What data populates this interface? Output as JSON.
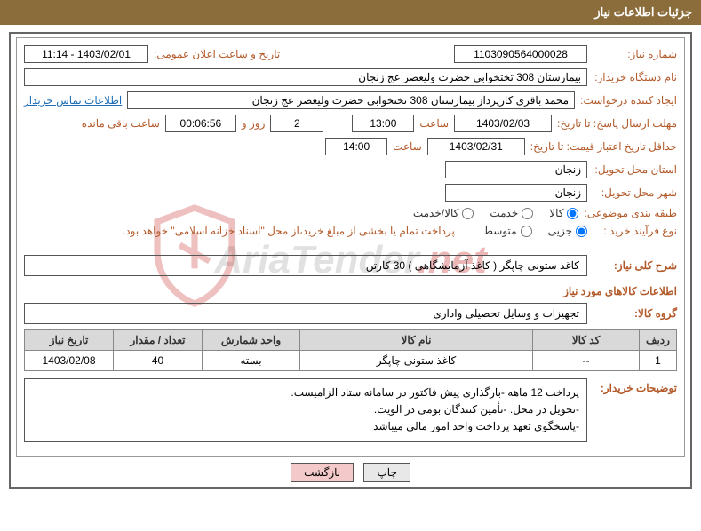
{
  "header": {
    "title": "جزئیات اطلاعات نیاز"
  },
  "fields": {
    "need_no_label": "شماره نیاز:",
    "need_no": "1103090564000028",
    "announce_label": "تاریخ و ساعت اعلان عمومی:",
    "announce": "1403/02/01 - 11:14",
    "buyer_org_label": "نام دستگاه خریدار:",
    "buyer_org": "بیمارستان 308 تختخوابی حضرت ولیعصر عج  زنجان",
    "requester_label": "ایجاد کننده درخواست:",
    "requester": "محمد باقری کارپرداز بیمارستان 308 تختخوابی حضرت ولیعصر عج  زنجان",
    "contact_link": "اطلاعات تماس خریدار",
    "resp_deadline_label": "مهلت ارسال پاسخ: تا تاریخ:",
    "resp_date": "1403/02/03",
    "time_label": "ساعت",
    "resp_time": "13:00",
    "days_val": "2",
    "days_and": "روز و",
    "countdown": "00:06:56",
    "remaining_label": "ساعت باقی مانده",
    "validity_label": "حداقل تاریخ اعتبار قیمت: تا تاریخ:",
    "validity_date": "1403/02/31",
    "validity_time": "14:00",
    "province_label": "استان محل تحویل:",
    "province": "زنجان",
    "city_label": "شهر محل تحویل:",
    "city": "زنجان",
    "subject_cat_label": "طبقه بندی موضوعی:",
    "r_goods": "کالا",
    "r_service": "خدمت",
    "r_both": "کالا/خدمت",
    "process_label": "نوع فرآیند خرید :",
    "r_partial": "جزیی",
    "r_medium": "متوسط",
    "payment_note": "پرداخت تمام یا بخشی از مبلغ خرید،از محل \"اسناد خزانه اسلامی\" خواهد بود.",
    "overview_label": "شرح کلی نیاز:",
    "overview": "کاغذ ستونی چاپگر ( کاغذ آزمایشگاهی ) 30 کارتن",
    "goods_heading": "اطلاعات کالاهای مورد نیاز",
    "group_label": "گروه کالا:",
    "group": "تجهیزات و وسایل تحصیلی واداری",
    "buyer_notes_label": "توضیحات خریدار:",
    "buyer_notes_1": "پرداخت 12 ماهه -بارگذاری پیش فاکتور در سامانه ستاد الزامیست.",
    "buyer_notes_2": "-تحویل در محل. -تأمین کنندگان بومی در الویت.",
    "buyer_notes_3": "-پاسخگوی تعهد پرداخت واحد امور مالی میباشد"
  },
  "table": {
    "headers": {
      "row": "ردیف",
      "code": "کد کالا",
      "name": "نام کالا",
      "unit": "واحد شمارش",
      "qty": "تعداد / مقدار",
      "need_date": "تاریخ نیاز"
    },
    "rows": [
      {
        "row": "1",
        "code": "--",
        "name": "کاغذ ستونی چاپگر",
        "unit": "بسته",
        "qty": "40",
        "need_date": "1403/02/08"
      }
    ]
  },
  "buttons": {
    "print": "چاپ",
    "back": "بازگشت"
  },
  "watermark": {
    "text1": "AriaTender",
    "text2": ".net"
  },
  "colors": {
    "header_bg": "#8a6d3b",
    "label": "#b35a2a",
    "link": "#1c6fb8",
    "th_bg": "#d9d9d9"
  }
}
